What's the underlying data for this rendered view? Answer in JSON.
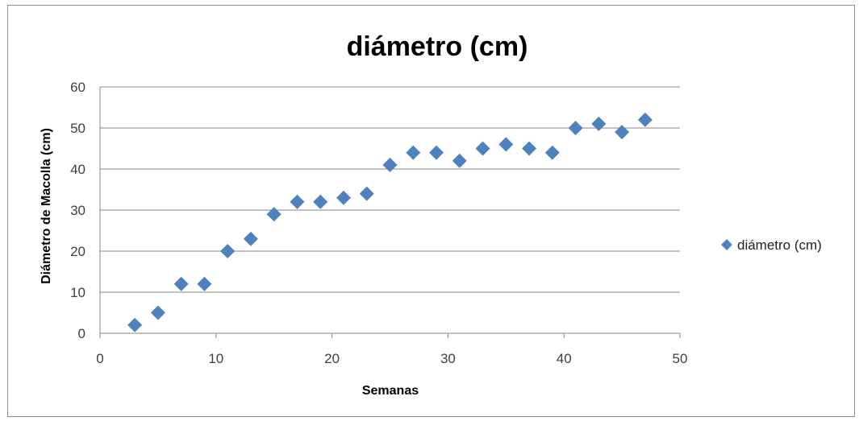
{
  "chart_data": {
    "type": "scatter",
    "title": "diámetro (cm)",
    "xlabel": "Semanas",
    "ylabel": "Diámetro de Macolla (cm)",
    "xlim": [
      0,
      50
    ],
    "ylim": [
      0,
      60
    ],
    "xticks": [
      "0",
      "10",
      "20",
      "30",
      "40",
      "50"
    ],
    "yticks": [
      "0",
      "10",
      "20",
      "30",
      "40",
      "50",
      "60"
    ],
    "grid": "horizontal",
    "legend": "right",
    "series": [
      {
        "name": "diámetro (cm)",
        "color": "#4f81bd",
        "marker": "diamond",
        "x": [
          3,
          5,
          7,
          9,
          11,
          13,
          15,
          17,
          19,
          21,
          23,
          25,
          27,
          29,
          31,
          33,
          35,
          37,
          39,
          41,
          43,
          45,
          47
        ],
        "y": [
          2,
          5,
          12,
          12,
          20,
          23,
          29,
          32,
          32,
          33,
          34,
          41,
          44,
          44,
          42,
          45,
          46,
          45,
          44,
          50,
          51,
          49,
          52
        ]
      }
    ]
  }
}
